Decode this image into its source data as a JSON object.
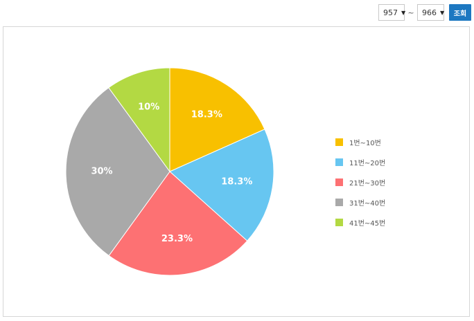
{
  "controls": {
    "start_value": "957",
    "end_value": "966",
    "separator": "~",
    "submit_label": "조회"
  },
  "chart_data": {
    "type": "pie",
    "title": "",
    "legend_position": "right",
    "categories": [
      "1번~10번",
      "11번~20번",
      "21번~30번",
      "31번~40번",
      "41번~45번"
    ],
    "values": [
      18.3,
      18.3,
      23.3,
      30,
      10
    ],
    "data_labels": [
      "18.3%",
      "18.3%",
      "23.3%",
      "30%",
      "10%"
    ],
    "colors": [
      "#f8c000",
      "#67c6f1",
      "#fd7173",
      "#a9a9a9",
      "#b3d943"
    ]
  }
}
